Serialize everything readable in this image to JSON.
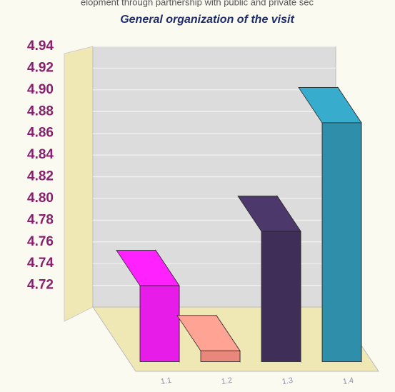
{
  "header": "elopment through partnership with public and private sec",
  "chart_data": {
    "type": "bar3d",
    "title": "General organization of the visit",
    "categories": [
      "1.1",
      "1.2",
      "1.3",
      "1.4"
    ],
    "values": [
      4.77,
      4.71,
      4.82,
      4.92
    ],
    "colors": [
      "#e81ce8",
      "#e8887c",
      "#3f2f58",
      "#2f8fab"
    ],
    "ylim": [
      4.7,
      4.94
    ],
    "yticks": [
      4.72,
      4.74,
      4.76,
      4.78,
      {
        "value": 4.8,
        "label": "4.80"
      },
      4.82,
      4.84,
      4.86,
      4.88,
      {
        "value": 4.9,
        "label": "4.90"
      },
      4.92,
      4.94
    ],
    "grid": true
  }
}
